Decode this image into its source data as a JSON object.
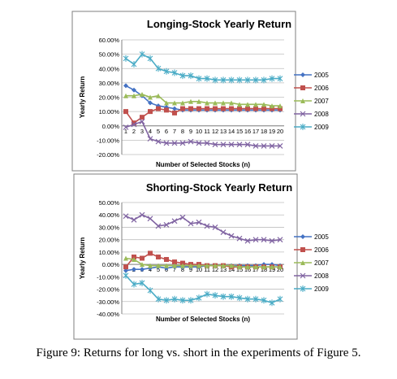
{
  "caption": "Figure 9: Returns for long vs. short in the experiments of Figure 5.",
  "chart_data": [
    {
      "type": "line",
      "title": "Longing-Stock Yearly Return",
      "xlabel": "Number of Selected Stocks (n)",
      "ylabel": "Yearly Return",
      "categories": [
        "1",
        "2",
        "3",
        "4",
        "5",
        "6",
        "7",
        "8",
        "9",
        "10",
        "11",
        "12",
        "13",
        "14",
        "15",
        "16",
        "17",
        "18",
        "19",
        "20"
      ],
      "ylim": [
        -0.2,
        0.6
      ],
      "yticks": [
        "-20.00%",
        "-10.00%",
        "0.00%",
        "10.00%",
        "20.00%",
        "30.00%",
        "40.00%",
        "50.00%",
        "60.00%"
      ],
      "legend_position": "right",
      "grid": true,
      "series": [
        {
          "name": "2005",
          "color": "#4472c4",
          "marker": "diamond",
          "values": [
            0.28,
            0.25,
            0.21,
            0.16,
            0.14,
            0.13,
            0.12,
            0.11,
            0.11,
            0.11,
            0.11,
            0.11,
            0.11,
            0.11,
            0.11,
            0.11,
            0.11,
            0.11,
            0.11,
            0.11
          ]
        },
        {
          "name": "2006",
          "color": "#c0504d",
          "marker": "square",
          "values": [
            0.1,
            0.02,
            0.06,
            0.1,
            0.12,
            0.11,
            0.09,
            0.12,
            0.12,
            0.12,
            0.12,
            0.12,
            0.12,
            0.12,
            0.12,
            0.12,
            0.12,
            0.12,
            0.12,
            0.12
          ]
        },
        {
          "name": "2007",
          "color": "#9bbb59",
          "marker": "triangle",
          "values": [
            0.21,
            0.21,
            0.22,
            0.2,
            0.21,
            0.16,
            0.16,
            0.16,
            0.17,
            0.17,
            0.16,
            0.16,
            0.16,
            0.16,
            0.15,
            0.15,
            0.15,
            0.15,
            0.14,
            0.14
          ]
        },
        {
          "name": "2008",
          "color": "#8064a2",
          "marker": "x",
          "values": [
            -0.01,
            0.01,
            0.03,
            -0.09,
            -0.11,
            -0.12,
            -0.12,
            -0.12,
            -0.11,
            -0.12,
            -0.12,
            -0.13,
            -0.13,
            -0.13,
            -0.13,
            -0.13,
            -0.14,
            -0.14,
            -0.14,
            -0.14
          ]
        },
        {
          "name": "2009",
          "color": "#4bacc6",
          "marker": "asterisk",
          "values": [
            0.47,
            0.43,
            0.5,
            0.47,
            0.4,
            0.38,
            0.37,
            0.35,
            0.35,
            0.33,
            0.33,
            0.32,
            0.32,
            0.32,
            0.32,
            0.32,
            0.32,
            0.32,
            0.33,
            0.33
          ]
        }
      ]
    },
    {
      "type": "line",
      "title": "Shorting-Stock Yearly Return",
      "xlabel": "Number of Selected Stocks (n)",
      "ylabel": "Yearly Return",
      "categories": [
        "1",
        "2",
        "3",
        "4",
        "5",
        "6",
        "7",
        "8",
        "9",
        "10",
        "11",
        "12",
        "13",
        "14",
        "15",
        "16",
        "17",
        "18",
        "19",
        "20"
      ],
      "ylim": [
        -0.4,
        0.5
      ],
      "yticks": [
        "-40.00%",
        "-30.00%",
        "-20.00%",
        "-10.00%",
        "0.00%",
        "10.00%",
        "20.00%",
        "30.00%",
        "40.00%",
        "50.00%"
      ],
      "legend_position": "right",
      "grid": true,
      "series": [
        {
          "name": "2005",
          "color": "#4472c4",
          "marker": "diamond",
          "values": [
            -0.05,
            -0.04,
            -0.04,
            -0.03,
            -0.02,
            -0.03,
            -0.02,
            -0.02,
            -0.02,
            -0.02,
            -0.01,
            -0.01,
            -0.01,
            -0.01,
            -0.01,
            -0.01,
            -0.01,
            0.0,
            0.0,
            -0.01
          ]
        },
        {
          "name": "2006",
          "color": "#c0504d",
          "marker": "square",
          "values": [
            -0.02,
            0.06,
            0.05,
            0.09,
            0.06,
            0.04,
            0.02,
            0.01,
            0.0,
            0.0,
            -0.01,
            -0.01,
            -0.01,
            -0.02,
            -0.02,
            -0.02,
            -0.02,
            -0.02,
            -0.02,
            -0.02
          ]
        },
        {
          "name": "2007",
          "color": "#9bbb59",
          "marker": "triangle",
          "values": [
            0.05,
            0.04,
            0.0,
            -0.01,
            -0.01,
            -0.01,
            -0.01,
            -0.01,
            -0.01,
            -0.01,
            -0.01,
            -0.01,
            -0.01,
            -0.01,
            -0.02,
            -0.02,
            -0.02,
            -0.02,
            -0.02,
            -0.02
          ]
        },
        {
          "name": "2008",
          "color": "#8064a2",
          "marker": "x",
          "values": [
            0.39,
            0.36,
            0.4,
            0.37,
            0.31,
            0.32,
            0.35,
            0.38,
            0.33,
            0.34,
            0.31,
            0.3,
            0.26,
            0.23,
            0.21,
            0.19,
            0.2,
            0.2,
            0.19,
            0.2
          ]
        },
        {
          "name": "2009",
          "color": "#4bacc6",
          "marker": "asterisk",
          "values": [
            -0.09,
            -0.16,
            -0.15,
            -0.21,
            -0.28,
            -0.29,
            -0.28,
            -0.29,
            -0.29,
            -0.27,
            -0.24,
            -0.25,
            -0.26,
            -0.26,
            -0.27,
            -0.28,
            -0.28,
            -0.29,
            -0.31,
            -0.28
          ]
        }
      ]
    }
  ]
}
